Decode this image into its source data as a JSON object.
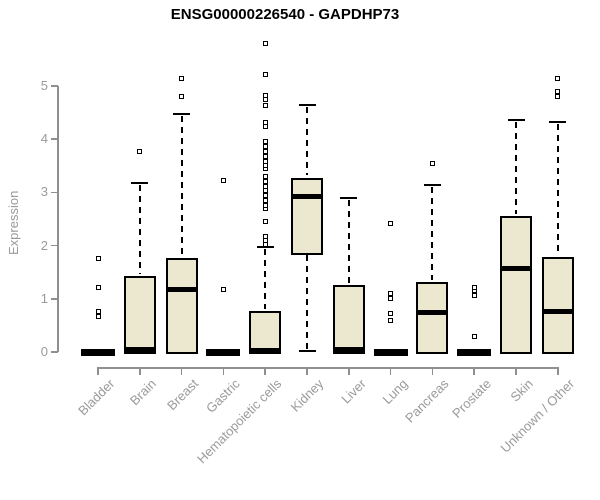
{
  "chart_data": {
    "type": "boxplot",
    "title": "ENSG00000226540 - GAPDHP73",
    "ylabel": "Expression",
    "xlabel": "",
    "ylim": [
      0,
      5
    ],
    "yticks": [
      0,
      1,
      2,
      3,
      4,
      5
    ],
    "grid": false,
    "legend": "none",
    "box_fill_color": "#ECE8CF",
    "box_line_color": "#000000",
    "axis_color": "#8f8f8f",
    "axis_text_color": "#9a9a9a",
    "categories": [
      "Bladder",
      "Brain",
      "Breast",
      "Gastric",
      "Hematopoietic cells",
      "Kidney",
      "Liver",
      "Lung",
      "Pancreas",
      "Prostate",
      "Skin",
      "Unknown / Other"
    ],
    "groups": [
      {
        "label": "Bladder",
        "flat": true,
        "q1": 0,
        "median": 0,
        "q3": 0,
        "whisker_low": 0,
        "whisker_high": 0,
        "outliers": [
          0.66,
          0.76,
          1.21,
          1.76
        ]
      },
      {
        "label": "Brain",
        "flat": false,
        "q1": 0,
        "median": 0.04,
        "q3": 1.42,
        "whisker_low": 0,
        "whisker_high": 3.17,
        "outliers": [
          3.77
        ]
      },
      {
        "label": "Breast",
        "flat": false,
        "q1": 0,
        "median": 1.17,
        "q3": 1.76,
        "whisker_low": 0,
        "whisker_high": 4.47,
        "outliers": [
          4.8,
          5.14
        ]
      },
      {
        "label": "Gastric",
        "flat": true,
        "q1": 0,
        "median": 0,
        "q3": 0,
        "whisker_low": 0,
        "whisker_high": 0,
        "outliers": [
          1.18,
          3.23
        ]
      },
      {
        "label": "Hematopoietic cells",
        "flat": false,
        "q1": 0,
        "median": 0.02,
        "q3": 0.77,
        "whisker_low": 0,
        "whisker_high": 1.98,
        "outliers": [
          2.03,
          2.1,
          2.18,
          2.45,
          2.7,
          2.76,
          2.85,
          2.94,
          3.03,
          3.12,
          3.21,
          3.3,
          3.45,
          3.5,
          3.59,
          3.68,
          3.77,
          3.86,
          3.95,
          4.24,
          4.31,
          4.64,
          4.74,
          4.82,
          5.21,
          5.8
        ]
      },
      {
        "label": "Kidney",
        "flat": false,
        "q1": 1.87,
        "median": 2.92,
        "q3": 3.28,
        "whisker_low": 0.02,
        "whisker_high": 4.64,
        "outliers": []
      },
      {
        "label": "Liver",
        "flat": false,
        "q1": 0,
        "median": 0.05,
        "q3": 1.26,
        "whisker_low": 0,
        "whisker_high": 2.89,
        "outliers": []
      },
      {
        "label": "Lung",
        "flat": true,
        "q1": 0,
        "median": 0,
        "q3": 0,
        "whisker_low": 0,
        "whisker_high": 0,
        "outliers": [
          0.6,
          0.73,
          1.01,
          1.1,
          2.42
        ]
      },
      {
        "label": "Pancreas",
        "flat": false,
        "q1": 0,
        "median": 0.75,
        "q3": 1.31,
        "whisker_low": 0,
        "whisker_high": 3.13,
        "outliers": [
          3.55
        ]
      },
      {
        "label": "Prostate",
        "flat": true,
        "q1": 0,
        "median": 0,
        "q3": 0,
        "whisker_low": 0,
        "whisker_high": 0,
        "outliers": [
          0.29,
          1.07,
          1.15,
          1.22
        ]
      },
      {
        "label": "Skin",
        "flat": false,
        "q1": 0,
        "median": 1.57,
        "q3": 2.56,
        "whisker_low": 0,
        "whisker_high": 4.36,
        "outliers": []
      },
      {
        "label": "Unknown / Other",
        "flat": false,
        "q1": 0,
        "median": 0.76,
        "q3": 1.79,
        "whisker_low": 0,
        "whisker_high": 4.33,
        "outliers": [
          4.8,
          4.89,
          5.14
        ]
      }
    ]
  }
}
